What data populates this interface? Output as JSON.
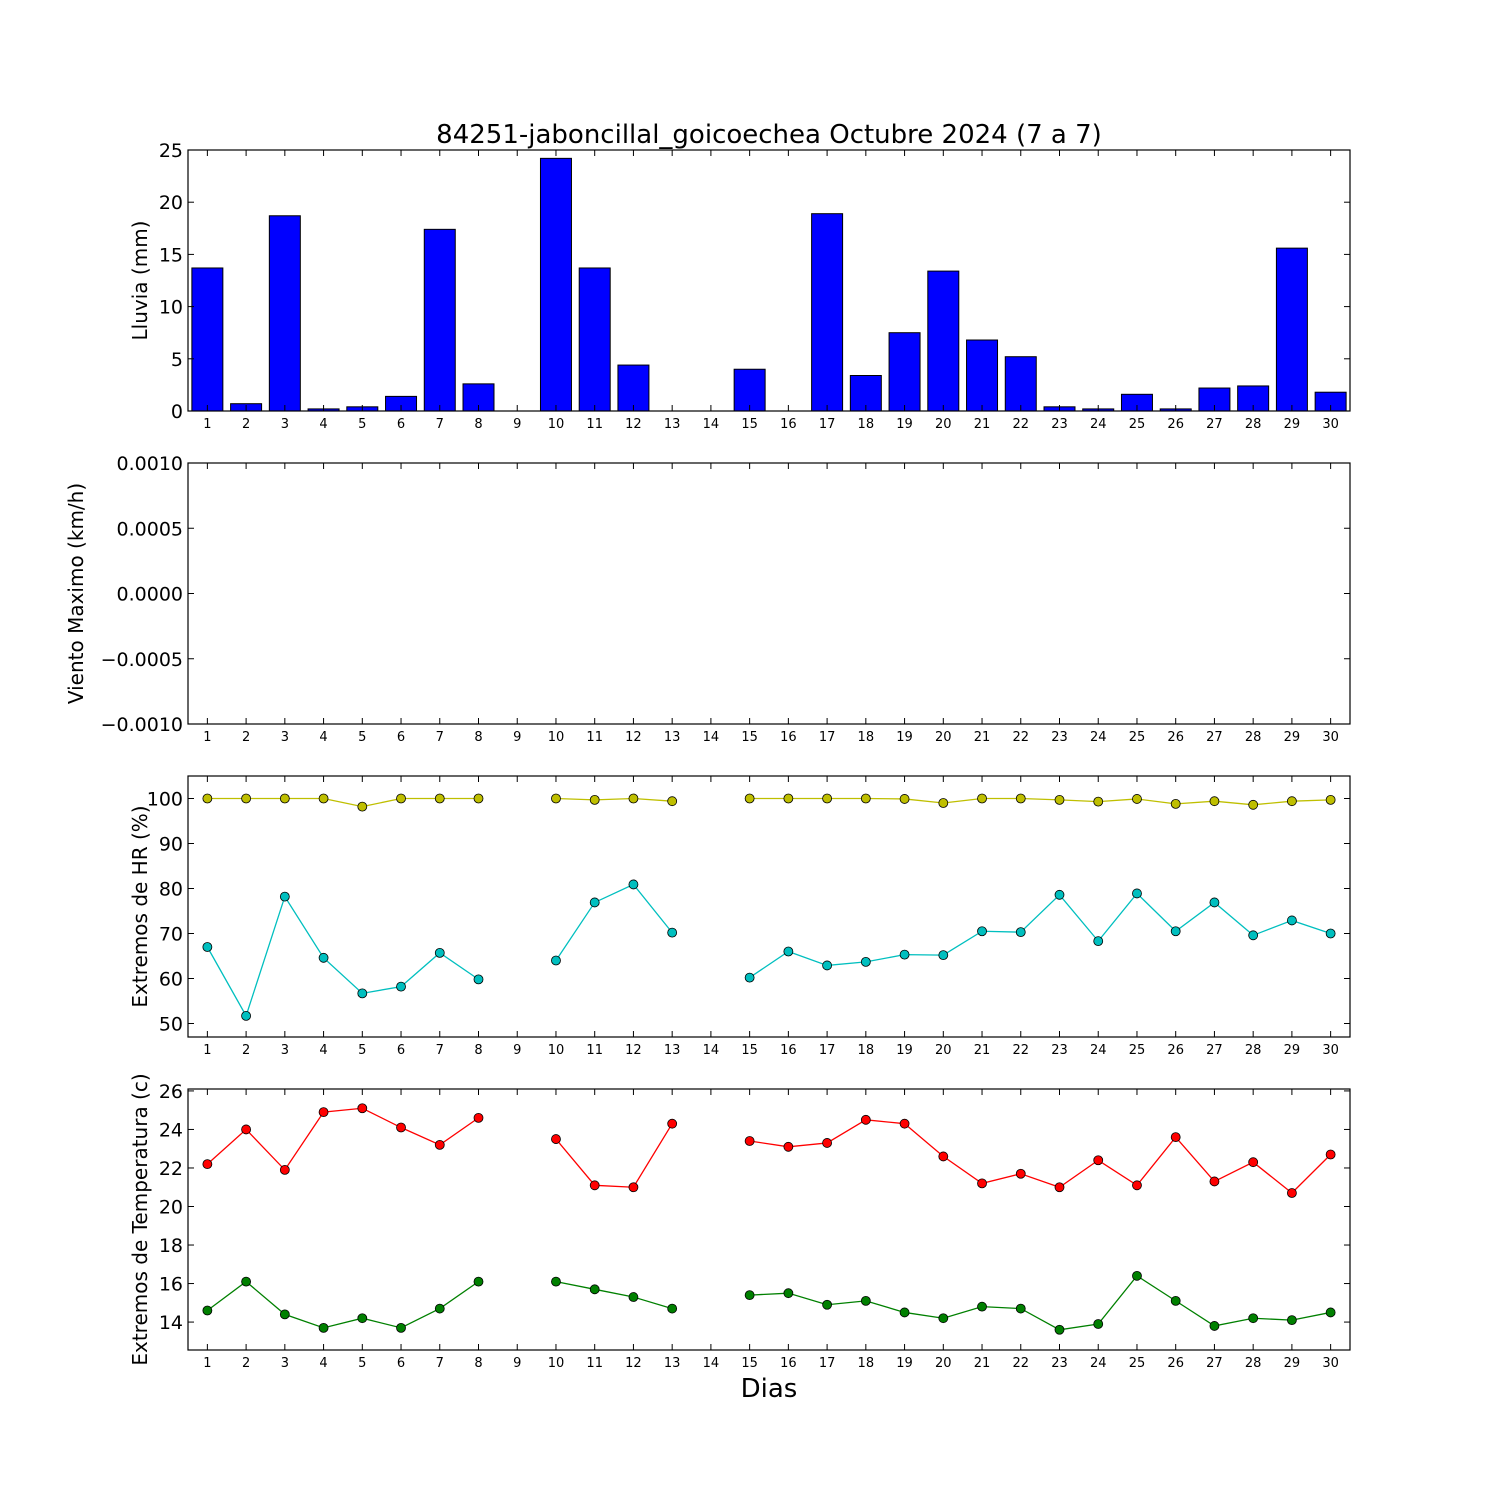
{
  "figure": {
    "title": "84251-jaboncillal_goicoechea Octubre 2024  (7 a 7)",
    "xlabel": "Dias"
  },
  "chart_data": [
    {
      "id": "lluvia",
      "type": "bar",
      "ylabel": "Lluvia (mm)",
      "ylim": [
        0,
        25
      ],
      "yticks": [
        0,
        5,
        10,
        15,
        20,
        25
      ],
      "x": [
        1,
        2,
        3,
        4,
        5,
        6,
        7,
        8,
        9,
        10,
        11,
        12,
        13,
        14,
        15,
        16,
        17,
        18,
        19,
        20,
        21,
        22,
        23,
        24,
        25,
        26,
        27,
        28,
        29,
        30
      ],
      "values": [
        13.7,
        0.7,
        18.7,
        0.2,
        0.4,
        1.4,
        17.4,
        2.6,
        null,
        24.2,
        13.7,
        4.4,
        0.0,
        0.0,
        4.0,
        0.0,
        18.9,
        3.4,
        7.5,
        13.4,
        6.8,
        5.2,
        0.4,
        0.2,
        1.6,
        0.2,
        2.2,
        2.4,
        15.6,
        1.8
      ],
      "colors": {
        "bar": "#0000ff"
      }
    },
    {
      "id": "viento",
      "type": "line",
      "ylabel": "Viento Maximo (km/h)",
      "ylim": [
        -0.001,
        0.001
      ],
      "yticks": [
        -0.001,
        -0.0005,
        0.0,
        0.0005,
        0.001
      ],
      "ytick_labels": [
        "−0.0010",
        "−0.0005",
        "0.0000",
        "0.0005",
        "0.0010"
      ],
      "x": [
        1,
        2,
        3,
        4,
        5,
        6,
        7,
        8,
        9,
        10,
        11,
        12,
        13,
        14,
        15,
        16,
        17,
        18,
        19,
        20,
        21,
        22,
        23,
        24,
        25,
        26,
        27,
        28,
        29,
        30
      ],
      "series": []
    },
    {
      "id": "hr",
      "type": "line",
      "ylabel": "Extremos de HR (%)",
      "ylim": [
        47,
        105
      ],
      "yticks": [
        50,
        60,
        70,
        80,
        90,
        100
      ],
      "x": [
        1,
        2,
        3,
        4,
        5,
        6,
        7,
        8,
        9,
        10,
        11,
        12,
        13,
        14,
        15,
        16,
        17,
        18,
        19,
        20,
        21,
        22,
        23,
        24,
        25,
        26,
        27,
        28,
        29,
        30
      ],
      "series": [
        {
          "color": "#bfbf00",
          "values": [
            100,
            100,
            100,
            100,
            98.2,
            100,
            100,
            100,
            null,
            100,
            99.7,
            100,
            99.4,
            null,
            100,
            100,
            100,
            100,
            99.9,
            99,
            100,
            100,
            99.7,
            99.3,
            99.9,
            98.8,
            99.4,
            98.6,
            99.4,
            99.7
          ]
        },
        {
          "color": "#00bfbf",
          "values": [
            67,
            51.7,
            78.2,
            64.6,
            56.7,
            58.2,
            65.7,
            59.8,
            null,
            64,
            76.9,
            80.9,
            70.2,
            null,
            60.2,
            66,
            62.9,
            63.7,
            65.3,
            65.2,
            70.5,
            70.3,
            78.6,
            68.3,
            78.9,
            70.5,
            76.9,
            69.6,
            72.9,
            70
          ]
        }
      ]
    },
    {
      "id": "temp",
      "type": "line",
      "ylabel": "Extremos de Temperatura (c)",
      "ylim": [
        12.55,
        26.1
      ],
      "yticks": [
        14,
        16,
        18,
        20,
        22,
        24,
        26
      ],
      "x": [
        1,
        2,
        3,
        4,
        5,
        6,
        7,
        8,
        9,
        10,
        11,
        12,
        13,
        14,
        15,
        16,
        17,
        18,
        19,
        20,
        21,
        22,
        23,
        24,
        25,
        26,
        27,
        28,
        29,
        30
      ],
      "series": [
        {
          "color": "#ff0000",
          "values": [
            22.2,
            24.0,
            21.9,
            24.9,
            25.1,
            24.1,
            23.2,
            24.6,
            null,
            23.5,
            21.1,
            21.0,
            24.3,
            null,
            23.4,
            23.1,
            23.3,
            24.5,
            24.3,
            22.6,
            21.2,
            21.7,
            21.0,
            22.4,
            21.1,
            23.6,
            21.3,
            22.3,
            20.7,
            22.7
          ]
        },
        {
          "color": "#008000",
          "values": [
            14.6,
            16.1,
            14.4,
            13.7,
            14.2,
            13.7,
            14.7,
            16.1,
            null,
            16.1,
            15.7,
            15.3,
            14.7,
            null,
            15.4,
            15.5,
            14.9,
            15.1,
            14.5,
            14.2,
            14.8,
            14.7,
            13.6,
            13.9,
            16.4,
            15.1,
            13.8,
            14.2,
            14.1,
            14.5
          ]
        }
      ]
    }
  ]
}
